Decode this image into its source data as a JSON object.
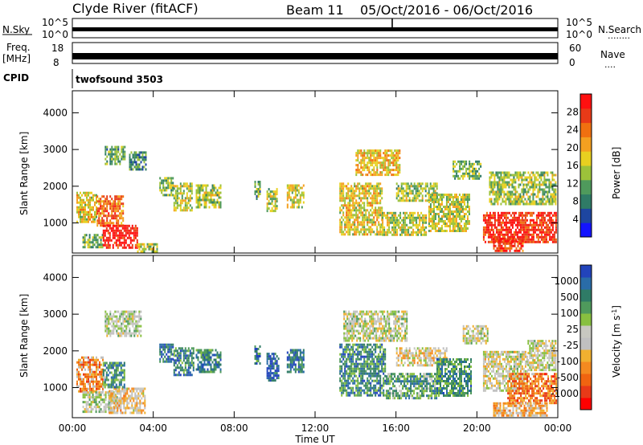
{
  "header": {
    "station": "Clyde River (fitACF)",
    "beam": "Beam 11",
    "dates": "05/Oct/2016 - 06/Oct/2016"
  },
  "strip_nsky": {
    "left_label": "N.Sky",
    "left_top": "10^5",
    "left_bottom": "10^0",
    "right_top": "10^5",
    "right_bottom": "10^0",
    "right_label": "N.Search",
    "right_dots": "........"
  },
  "strip_freq": {
    "left_label_1": "Freq.",
    "left_label_2": "[MHz]",
    "left_top": "18",
    "left_bottom": "8",
    "right_top": "60",
    "right_bottom": "0",
    "right_label": "Nave",
    "right_dots": "...."
  },
  "cpid": {
    "label": "CPID",
    "value": "twofsound 3503"
  },
  "xaxis": {
    "ticks": [
      "00:00",
      "04:00",
      "08:00",
      "12:00",
      "16:00",
      "20:00",
      "00:00"
    ],
    "label": "Time UT"
  },
  "chart_data": [
    {
      "type": "heatmap",
      "panel": "power",
      "ylabel": "Slant Range [km]",
      "yticks": [
        1000,
        2000,
        3000,
        4000
      ],
      "ylim": [
        180,
        4600
      ],
      "xlim_hours": [
        0,
        24
      ],
      "colorbar": {
        "label": "Power [dB]",
        "tick_labels": [
          "4",
          "8",
          "12",
          "16",
          "20",
          "24",
          "28"
        ],
        "colors": [
          "#1414ff",
          "#1e46a0",
          "#2f7b66",
          "#4f9a5c",
          "#9cc23a",
          "#e8d020",
          "#f4a020",
          "#f07010",
          "#e83a18",
          "#ff1010"
        ]
      },
      "blobs": [
        {
          "t0": 0.2,
          "t1": 1.2,
          "r0": 1050,
          "r1": 1850,
          "level": 0.55
        },
        {
          "t0": 0.5,
          "t1": 1.5,
          "r0": 350,
          "r1": 700,
          "level": 0.4
        },
        {
          "t0": 1.2,
          "t1": 2.5,
          "r0": 950,
          "r1": 1750,
          "level": 0.75
        },
        {
          "t0": 1.5,
          "t1": 3.2,
          "r0": 300,
          "r1": 950,
          "level": 0.95
        },
        {
          "t0": 3.2,
          "t1": 4.2,
          "r0": 250,
          "r1": 450,
          "level": 0.5
        },
        {
          "t0": 1.6,
          "t1": 2.6,
          "r0": 2600,
          "r1": 3100,
          "level": 0.35
        },
        {
          "t0": 2.8,
          "t1": 3.6,
          "r0": 2450,
          "r1": 2950,
          "level": 0.3
        },
        {
          "t0": 4.3,
          "t1": 5.0,
          "r0": 1750,
          "r1": 2250,
          "level": 0.4
        },
        {
          "t0": 5.0,
          "t1": 5.9,
          "r0": 1350,
          "r1": 2100,
          "level": 0.5
        },
        {
          "t0": 6.1,
          "t1": 7.3,
          "r0": 1450,
          "r1": 2050,
          "level": 0.45
        },
        {
          "t0": 9.0,
          "t1": 9.3,
          "r0": 1650,
          "r1": 2150,
          "level": 0.35
        },
        {
          "t0": 9.6,
          "t1": 10.1,
          "r0": 1350,
          "r1": 1950,
          "level": 0.45
        },
        {
          "t0": 10.6,
          "t1": 11.4,
          "r0": 1450,
          "r1": 2050,
          "level": 0.5
        },
        {
          "t0": 13.2,
          "t1": 15.3,
          "r0": 700,
          "r1": 2100,
          "level": 0.55
        },
        {
          "t0": 14.0,
          "t1": 16.2,
          "r0": 2300,
          "r1": 3000,
          "level": 0.6
        },
        {
          "t0": 15.3,
          "t1": 17.5,
          "r0": 650,
          "r1": 1300,
          "level": 0.5
        },
        {
          "t0": 16.0,
          "t1": 18.0,
          "r0": 1600,
          "r1": 2100,
          "level": 0.45
        },
        {
          "t0": 17.6,
          "t1": 19.6,
          "r0": 750,
          "r1": 1800,
          "level": 0.5
        },
        {
          "t0": 18.8,
          "t1": 20.2,
          "r0": 2200,
          "r1": 2700,
          "level": 0.4
        },
        {
          "t0": 20.3,
          "t1": 23.9,
          "r0": 500,
          "r1": 1300,
          "level": 0.9
        },
        {
          "t0": 20.6,
          "t1": 23.9,
          "r0": 1500,
          "r1": 2400,
          "level": 0.45
        },
        {
          "t0": 20.8,
          "t1": 22.3,
          "r0": 230,
          "r1": 600,
          "level": 0.85
        }
      ]
    },
    {
      "type": "heatmap",
      "panel": "velocity",
      "ylabel": "Slant Range [km]",
      "yticks": [
        1000,
        2000,
        3000,
        4000
      ],
      "ylim": [
        180,
        4600
      ],
      "xlim_hours": [
        0,
        24
      ],
      "colorbar": {
        "label": "Velocity [m s^-1]",
        "tick_labels": [
          "1000",
          "500",
          "100",
          "25",
          "-25",
          "-100",
          "-500",
          "-1000"
        ],
        "colors": [
          "#2244bb",
          "#2a6ca8",
          "#2f7b66",
          "#4f9a5c",
          "#88c040",
          "#c8c8c0",
          "#c0c0c0",
          "#f0b030",
          "#f48a20",
          "#f06410",
          "#e83a18",
          "#ff0000"
        ]
      },
      "blobs": [
        {
          "t0": 0.2,
          "t1": 1.5,
          "r0": 900,
          "r1": 1850,
          "level": 0.3
        },
        {
          "t0": 0.5,
          "t1": 2.2,
          "r0": 350,
          "r1": 900,
          "level": 0.55
        },
        {
          "t0": 1.8,
          "t1": 3.6,
          "r0": 300,
          "r1": 1000,
          "level": 0.42
        },
        {
          "t0": 1.5,
          "t1": 2.6,
          "r0": 1000,
          "r1": 1700,
          "level": 0.75
        },
        {
          "t0": 1.6,
          "t1": 3.4,
          "r0": 2400,
          "r1": 3100,
          "level": 0.55
        },
        {
          "t0": 4.3,
          "t1": 5.0,
          "r0": 1700,
          "r1": 2200,
          "level": 0.85
        },
        {
          "t0": 5.0,
          "t1": 6.0,
          "r0": 1350,
          "r1": 2100,
          "level": 0.8
        },
        {
          "t0": 6.1,
          "t1": 7.3,
          "r0": 1450,
          "r1": 2050,
          "level": 0.8
        },
        {
          "t0": 9.0,
          "t1": 9.3,
          "r0": 1650,
          "r1": 2150,
          "level": 0.8
        },
        {
          "t0": 9.6,
          "t1": 10.2,
          "r0": 1200,
          "r1": 1950,
          "level": 0.9
        },
        {
          "t0": 10.6,
          "t1": 11.4,
          "r0": 1450,
          "r1": 2050,
          "level": 0.85
        },
        {
          "t0": 13.2,
          "t1": 15.5,
          "r0": 800,
          "r1": 2200,
          "level": 0.78
        },
        {
          "t0": 13.4,
          "t1": 16.5,
          "r0": 2300,
          "r1": 3100,
          "level": 0.52
        },
        {
          "t0": 15.5,
          "t1": 18.0,
          "r0": 700,
          "r1": 1400,
          "level": 0.72
        },
        {
          "t0": 16.0,
          "t1": 18.5,
          "r0": 1600,
          "r1": 2100,
          "level": 0.45
        },
        {
          "t0": 18.0,
          "t1": 19.7,
          "r0": 750,
          "r1": 1800,
          "level": 0.75
        },
        {
          "t0": 19.3,
          "t1": 20.5,
          "r0": 2200,
          "r1": 2700,
          "level": 0.52
        },
        {
          "t0": 20.3,
          "t1": 22.5,
          "r0": 900,
          "r1": 2000,
          "level": 0.5
        },
        {
          "t0": 21.5,
          "t1": 23.9,
          "r0": 600,
          "r1": 1400,
          "level": 0.25
        },
        {
          "t0": 22.5,
          "t1": 23.9,
          "r0": 1500,
          "r1": 2300,
          "level": 0.5
        },
        {
          "t0": 20.8,
          "t1": 23.5,
          "r0": 230,
          "r1": 600,
          "level": 0.4
        }
      ]
    }
  ]
}
